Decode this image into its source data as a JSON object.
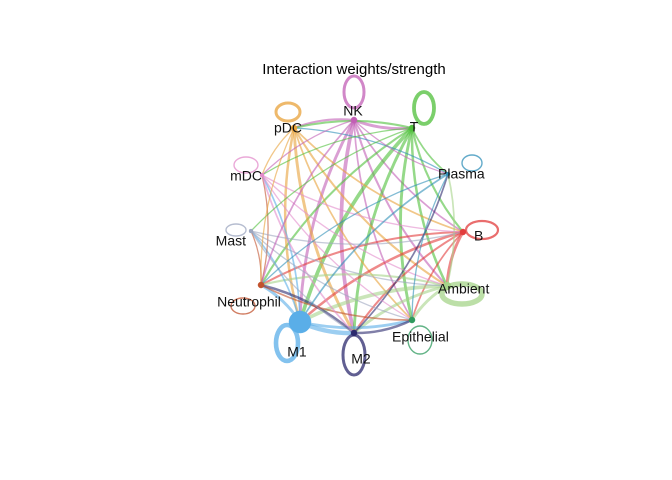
{
  "title": "Interaction weights/strength",
  "nodes": [
    {
      "id": "NK",
      "label": "NK",
      "color": "#c25fb5",
      "self_weight": 3
    },
    {
      "id": "T",
      "label": "T",
      "color": "#4fbf3a",
      "self_weight": 4
    },
    {
      "id": "Plasma",
      "label": "Plasma",
      "color": "#2f8fb8",
      "self_weight": 1
    },
    {
      "id": "B",
      "label": "B",
      "color": "#e23c3c",
      "self_weight": 2
    },
    {
      "id": "Ambient",
      "label": "Ambient",
      "color": "#a6d48a",
      "self_weight": 6
    },
    {
      "id": "Epithelial",
      "label": "Epithelial",
      "color": "#2e9a5d",
      "self_weight": 1
    },
    {
      "id": "M2",
      "label": "M2",
      "color": "#2c2a6e",
      "self_weight": 3
    },
    {
      "id": "M1",
      "label": "M1",
      "color": "#5aaee8",
      "self_weight": 5
    },
    {
      "id": "Neutrophil",
      "label": "Neutrophil",
      "color": "#c2522d",
      "self_weight": 1
    },
    {
      "id": "Mast",
      "label": "Mast",
      "color": "#9ea7c0",
      "self_weight": 1
    },
    {
      "id": "mDC",
      "label": "mDC",
      "color": "#e38ccb",
      "self_weight": 1
    },
    {
      "id": "pDC",
      "label": "pDC",
      "color": "#e8a23a",
      "self_weight": 3
    }
  ],
  "edges": [
    {
      "source": "NK",
      "target": "M2",
      "weight": 4
    },
    {
      "source": "NK",
      "target": "M1",
      "weight": 3
    },
    {
      "source": "NK",
      "target": "T",
      "weight": 3
    },
    {
      "source": "NK",
      "target": "pDC",
      "weight": 2
    },
    {
      "source": "NK",
      "target": "Ambient",
      "weight": 2
    },
    {
      "source": "NK",
      "target": "B",
      "weight": 1.5
    },
    {
      "source": "NK",
      "target": "Epithelial",
      "weight": 1.5
    },
    {
      "source": "T",
      "target": "M1",
      "weight": 4
    },
    {
      "source": "T",
      "target": "M2",
      "weight": 3
    },
    {
      "source": "T",
      "target": "Epithelial",
      "weight": 3
    },
    {
      "source": "T",
      "target": "Ambient",
      "weight": 2.5
    },
    {
      "source": "T",
      "target": "Neutrophil",
      "weight": 2
    },
    {
      "source": "T",
      "target": "pDC",
      "weight": 2
    },
    {
      "source": "T",
      "target": "B",
      "weight": 2
    },
    {
      "source": "T",
      "target": "Plasma",
      "weight": 1.5
    },
    {
      "source": "pDC",
      "target": "M2",
      "weight": 3
    },
    {
      "source": "pDC",
      "target": "M1",
      "weight": 2.5
    },
    {
      "source": "pDC",
      "target": "Ambient",
      "weight": 2
    },
    {
      "source": "pDC",
      "target": "Epithelial",
      "weight": 1.5
    },
    {
      "source": "pDC",
      "target": "B",
      "weight": 1.5
    },
    {
      "source": "B",
      "target": "Ambient",
      "weight": 3
    },
    {
      "source": "B",
      "target": "M1",
      "weight": 2.5
    },
    {
      "source": "B",
      "target": "Neutrophil",
      "weight": 2
    },
    {
      "source": "B",
      "target": "M2",
      "weight": 2
    },
    {
      "source": "B",
      "target": "Epithelial",
      "weight": 1.5
    },
    {
      "source": "Ambient",
      "target": "M1",
      "weight": 4
    },
    {
      "source": "Ambient",
      "target": "M2",
      "weight": 3
    },
    {
      "source": "Ambient",
      "target": "Epithelial",
      "weight": 3
    },
    {
      "source": "Ambient",
      "target": "Neutrophil",
      "weight": 2
    },
    {
      "source": "Ambient",
      "target": "Plasma",
      "weight": 1.5
    },
    {
      "source": "M1",
      "target": "M2",
      "weight": 5
    },
    {
      "source": "M1",
      "target": "Epithelial",
      "weight": 3
    },
    {
      "source": "M1",
      "target": "Neutrophil",
      "weight": 3
    },
    {
      "source": "M1",
      "target": "Mast",
      "weight": 1.5
    },
    {
      "source": "M1",
      "target": "mDC",
      "weight": 1.5
    },
    {
      "source": "M2",
      "target": "Epithelial",
      "weight": 2.5
    },
    {
      "source": "M2",
      "target": "Neutrophil",
      "weight": 2.5
    },
    {
      "source": "M2",
      "target": "Plasma",
      "weight": 1.5
    },
    {
      "source": "Neutrophil",
      "target": "Epithelial",
      "weight": 1.5
    },
    {
      "source": "Neutrophil",
      "target": "mDC",
      "weight": 1
    },
    {
      "source": "Neutrophil",
      "target": "Mast",
      "weight": 1
    },
    {
      "source": "mDC",
      "target": "M2",
      "weight": 1.5
    },
    {
      "source": "mDC",
      "target": "Ambient",
      "weight": 1
    },
    {
      "source": "mDC",
      "target": "B",
      "weight": 1
    },
    {
      "source": "mDC",
      "target": "Epithelial",
      "weight": 1
    },
    {
      "source": "Mast",
      "target": "Ambient",
      "weight": 1
    },
    {
      "source": "Mast",
      "target": "B",
      "weight": 1
    },
    {
      "source": "Mast",
      "target": "M2",
      "weight": 1
    },
    {
      "source": "Mast",
      "target": "Epithelial",
      "weight": 1
    },
    {
      "source": "Plasma",
      "target": "M1",
      "weight": 1.5
    },
    {
      "source": "Plasma",
      "target": "Epithelial",
      "weight": 1
    },
    {
      "source": "Plasma",
      "target": "Neutrophil",
      "weight": 1
    },
    {
      "source": "Plasma",
      "target": "pDC",
      "weight": 1
    },
    {
      "source": "NK",
      "target": "mDC",
      "weight": 1
    },
    {
      "source": "NK",
      "target": "Neutrophil",
      "weight": 1.5
    },
    {
      "source": "NK",
      "target": "Plasma",
      "weight": 1
    },
    {
      "source": "T",
      "target": "mDC",
      "weight": 1
    },
    {
      "source": "T",
      "target": "Mast",
      "weight": 1
    },
    {
      "source": "pDC",
      "target": "Neutrophil",
      "weight": 1
    },
    {
      "source": "pDC",
      "target": "mDC",
      "weight": 1
    }
  ]
}
